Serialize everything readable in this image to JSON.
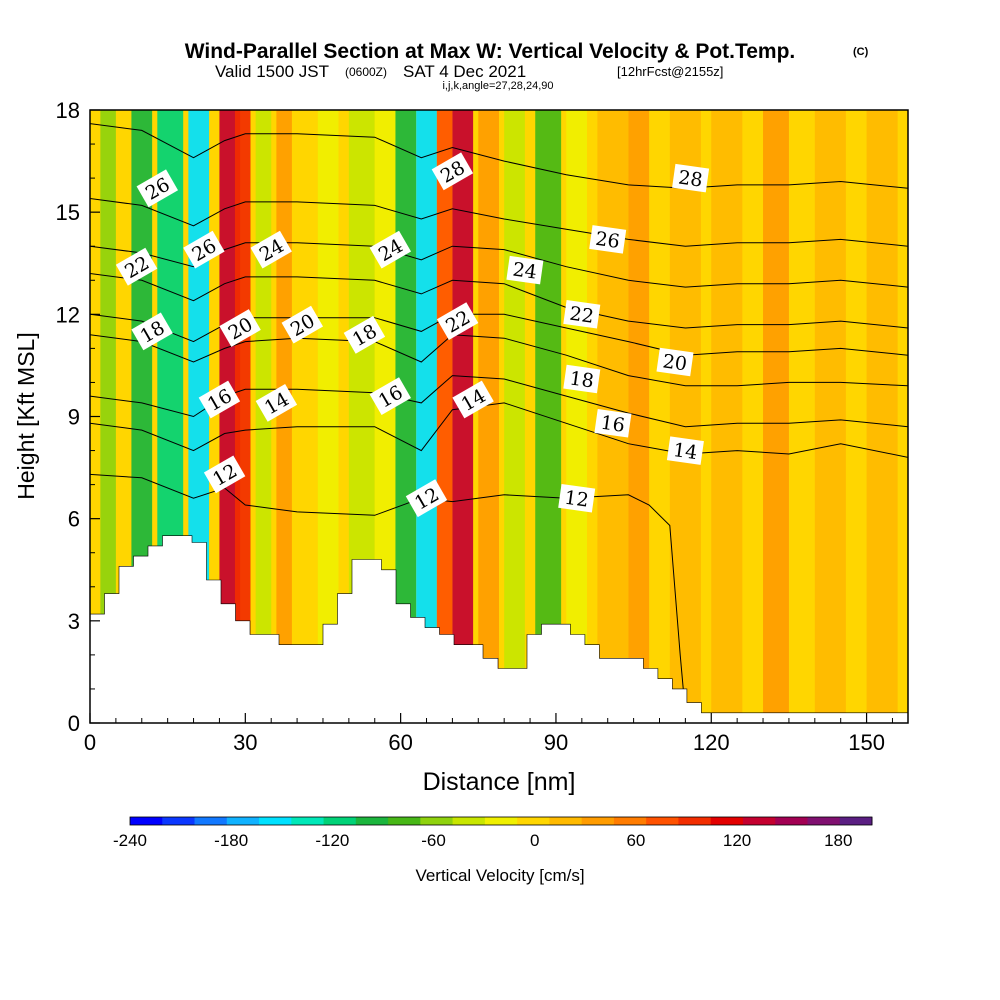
{
  "title": {
    "main": "Wind-Parallel Section at Max W: Vertical Velocity & Pot.Temp.",
    "copyright": "(C)",
    "valid_prefix": "Valid 1500 JST",
    "valid_utc": "(0600Z)",
    "valid_date": "SAT 4 Dec 2021",
    "forecast": "[12hrFcst@2155z]",
    "indices": "i,j,k,angle=27,28,24,90"
  },
  "chart_data": {
    "type": "heatmap",
    "title": "Wind-Parallel Section at Max W: Vertical Velocity & Pot.Temp.",
    "xlabel": "Distance [nm]",
    "ylabel": "Height [Kft MSL]",
    "xlim": [
      0,
      158
    ],
    "ylim": [
      0,
      18
    ],
    "x_ticks": [
      "0",
      "30",
      "60",
      "90",
      "120",
      "150"
    ],
    "y_ticks": [
      "0",
      "3",
      "6",
      "9",
      "12",
      "15",
      "18"
    ],
    "colorbar": {
      "label": "Vertical Velocity [cm/s]",
      "range": [
        -240,
        200
      ],
      "ticks": [
        "-240",
        "-180",
        "-120",
        "-60",
        "0",
        "60",
        "120",
        "180"
      ],
      "colors": [
        "#0000ff",
        "#0a37ff",
        "#1178ff",
        "#10b2ff",
        "#00e1ff",
        "#00e8b8",
        "#00d277",
        "#1bb53d",
        "#47b716",
        "#8fd20d",
        "#c8e600",
        "#f0f000",
        "#ffd600",
        "#ffba00",
        "#ff9c00",
        "#ff7c00",
        "#ff5200",
        "#f22d00",
        "#e30000",
        "#c4002f",
        "#a20053",
        "#801070",
        "#5a1e82"
      ]
    },
    "terrain_kft": [
      [
        0,
        3.2
      ],
      [
        2.8,
        3.8
      ],
      [
        5.6,
        4.6
      ],
      [
        8.4,
        4.9
      ],
      [
        11.2,
        5.2
      ],
      [
        14.0,
        5.5
      ],
      [
        17.0,
        5.5
      ],
      [
        19.7,
        5.3
      ],
      [
        22.5,
        4.2
      ],
      [
        25.3,
        3.5
      ],
      [
        28.1,
        3.0
      ],
      [
        30.9,
        2.6
      ],
      [
        33.7,
        2.6
      ],
      [
        36.5,
        2.3
      ],
      [
        39.4,
        2.3
      ],
      [
        42.2,
        2.3
      ],
      [
        45.0,
        2.9
      ],
      [
        47.8,
        3.8
      ],
      [
        50.6,
        4.8
      ],
      [
        53.4,
        4.8
      ],
      [
        56.3,
        4.5
      ],
      [
        59.1,
        3.5
      ],
      [
        61.9,
        3.1
      ],
      [
        64.7,
        2.8
      ],
      [
        67.5,
        2.6
      ],
      [
        70.3,
        2.3
      ],
      [
        73.1,
        2.3
      ],
      [
        75.9,
        1.9
      ],
      [
        78.8,
        1.6
      ],
      [
        81.6,
        1.6
      ],
      [
        84.4,
        2.6
      ],
      [
        87.2,
        2.9
      ],
      [
        90.0,
        2.9
      ],
      [
        92.8,
        2.6
      ],
      [
        95.6,
        2.3
      ],
      [
        98.4,
        1.9
      ],
      [
        101.3,
        1.9
      ],
      [
        104.1,
        1.9
      ],
      [
        106.9,
        1.6
      ],
      [
        109.7,
        1.3
      ],
      [
        112.5,
        1.0
      ],
      [
        115.3,
        0.6
      ],
      [
        118.1,
        0.3
      ],
      [
        120.9,
        0.3
      ],
      [
        158,
        0.3
      ]
    ],
    "velocity_bands": [
      {
        "x": 2,
        "width": 3,
        "value": -60
      },
      {
        "x": 8,
        "width": 4,
        "value": -90
      },
      {
        "x": 13,
        "width": 5,
        "value": -120
      },
      {
        "x": 19,
        "width": 4,
        "value": -160
      },
      {
        "x": 25,
        "width": 4,
        "value": 130
      },
      {
        "x": 28,
        "width": 3,
        "value": 90
      },
      {
        "x": 32,
        "width": 3,
        "value": -30
      },
      {
        "x": 36,
        "width": 3,
        "value": 30
      },
      {
        "x": 44,
        "width": 4,
        "value": -15
      },
      {
        "x": 50,
        "width": 5,
        "value": -40
      },
      {
        "x": 55,
        "width": 4,
        "value": -20
      },
      {
        "x": 59,
        "width": 4,
        "value": -90
      },
      {
        "x": 63,
        "width": 4,
        "value": -160
      },
      {
        "x": 67,
        "width": 3,
        "value": 80
      },
      {
        "x": 70,
        "width": 4,
        "value": 130
      },
      {
        "x": 75,
        "width": 4,
        "value": 40
      },
      {
        "x": 80,
        "width": 4,
        "value": -30
      },
      {
        "x": 86,
        "width": 5,
        "value": -70
      },
      {
        "x": 92,
        "width": 4,
        "value": -20
      },
      {
        "x": 98,
        "width": 6,
        "value": 20
      },
      {
        "x": 104,
        "width": 4,
        "value": 35
      },
      {
        "x": 112,
        "width": 6,
        "value": 15
      },
      {
        "x": 120,
        "width": 6,
        "value": 25
      },
      {
        "x": 130,
        "width": 5,
        "value": 30
      },
      {
        "x": 140,
        "width": 6,
        "value": 15
      },
      {
        "x": 150,
        "width": 6,
        "value": 25
      }
    ],
    "theta_contours": [
      {
        "value": "12",
        "points": [
          [
            0,
            7.3
          ],
          [
            10,
            7.2
          ],
          [
            20,
            6.6
          ],
          [
            26,
            6.9
          ],
          [
            30,
            6.4
          ],
          [
            40,
            6.2
          ],
          [
            55,
            6.1
          ],
          [
            64,
            6.6
          ],
          [
            70,
            6.5
          ],
          [
            80,
            6.7
          ],
          [
            92,
            6.6
          ],
          [
            104,
            6.7
          ],
          [
            108,
            6.4
          ],
          [
            112,
            5.8
          ],
          [
            114,
            2.0
          ],
          [
            115,
            0.3
          ]
        ],
        "labels": [
          [
            26,
            7.3
          ],
          [
            65,
            6.6
          ],
          [
            94,
            6.6
          ]
        ]
      },
      {
        "value": "14",
        "points": [
          [
            0,
            8.8
          ],
          [
            10,
            8.6
          ],
          [
            20,
            8.0
          ],
          [
            26,
            8.5
          ],
          [
            30,
            8.6
          ],
          [
            40,
            8.7
          ],
          [
            55,
            8.7
          ],
          [
            64,
            8.0
          ],
          [
            70,
            9.2
          ],
          [
            80,
            9.4
          ],
          [
            92,
            8.8
          ],
          [
            104,
            8.2
          ],
          [
            115,
            7.9
          ],
          [
            125,
            8.0
          ],
          [
            135,
            7.9
          ],
          [
            145,
            8.2
          ],
          [
            158,
            7.8
          ]
        ],
        "labels": [
          [
            36,
            9.4
          ],
          [
            74,
            9.5
          ],
          [
            115,
            8.0
          ]
        ]
      },
      {
        "value": "16",
        "points": [
          [
            0,
            9.6
          ],
          [
            10,
            9.4
          ],
          [
            20,
            9.0
          ],
          [
            26,
            9.6
          ],
          [
            30,
            9.8
          ],
          [
            40,
            9.8
          ],
          [
            55,
            9.7
          ],
          [
            64,
            9.4
          ],
          [
            70,
            10.2
          ],
          [
            80,
            10.1
          ],
          [
            92,
            9.6
          ],
          [
            104,
            9.1
          ],
          [
            115,
            8.7
          ],
          [
            125,
            8.8
          ],
          [
            135,
            8.8
          ],
          [
            145,
            8.9
          ],
          [
            158,
            8.7
          ]
        ],
        "labels": [
          [
            25,
            9.5
          ],
          [
            58,
            9.6
          ],
          [
            101,
            8.8
          ]
        ]
      },
      {
        "value": "18",
        "points": [
          [
            0,
            11.4
          ],
          [
            10,
            11.2
          ],
          [
            20,
            10.6
          ],
          [
            26,
            11.0
          ],
          [
            30,
            11.2
          ],
          [
            40,
            11.3
          ],
          [
            55,
            11.2
          ],
          [
            64,
            10.6
          ],
          [
            70,
            11.4
          ],
          [
            80,
            11.3
          ],
          [
            92,
            10.8
          ],
          [
            104,
            10.2
          ],
          [
            115,
            9.9
          ],
          [
            125,
            9.9
          ],
          [
            135,
            10.0
          ],
          [
            145,
            10.0
          ],
          [
            158,
            9.9
          ]
        ],
        "labels": [
          [
            12,
            11.5
          ],
          [
            53,
            11.4
          ],
          [
            95,
            10.1
          ]
        ]
      },
      {
        "value": "20",
        "points": [
          [
            0,
            12.0
          ],
          [
            10,
            11.8
          ],
          [
            20,
            11.2
          ],
          [
            26,
            11.7
          ],
          [
            30,
            11.9
          ],
          [
            40,
            11.9
          ],
          [
            55,
            11.9
          ],
          [
            64,
            11.5
          ],
          [
            70,
            12.0
          ],
          [
            80,
            12.0
          ],
          [
            92,
            11.6
          ],
          [
            104,
            11.2
          ],
          [
            115,
            10.8
          ],
          [
            125,
            10.9
          ],
          [
            135,
            10.9
          ],
          [
            145,
            11.0
          ],
          [
            158,
            10.8
          ]
        ],
        "labels": [
          [
            29,
            11.6
          ],
          [
            41,
            11.7
          ],
          [
            113,
            10.6
          ]
        ]
      },
      {
        "value": "22",
        "points": [
          [
            0,
            13.2
          ],
          [
            10,
            13.0
          ],
          [
            20,
            12.4
          ],
          [
            26,
            12.9
          ],
          [
            30,
            13.1
          ],
          [
            40,
            13.1
          ],
          [
            55,
            13.0
          ],
          [
            64,
            12.6
          ],
          [
            70,
            13.0
          ],
          [
            80,
            12.9
          ],
          [
            92,
            12.2
          ],
          [
            104,
            11.8
          ],
          [
            115,
            11.6
          ],
          [
            125,
            11.7
          ],
          [
            135,
            11.7
          ],
          [
            145,
            11.8
          ],
          [
            158,
            11.6
          ]
        ],
        "labels": [
          [
            9,
            13.4
          ],
          [
            71,
            11.8
          ],
          [
            95,
            12.0
          ]
        ]
      },
      {
        "value": "24",
        "points": [
          [
            0,
            14.0
          ],
          [
            10,
            13.8
          ],
          [
            20,
            13.4
          ],
          [
            26,
            13.9
          ],
          [
            30,
            14.1
          ],
          [
            40,
            14.1
          ],
          [
            55,
            14.0
          ],
          [
            64,
            13.6
          ],
          [
            70,
            14.0
          ],
          [
            80,
            13.9
          ],
          [
            92,
            13.4
          ],
          [
            104,
            13.0
          ],
          [
            115,
            12.8
          ],
          [
            125,
            12.9
          ],
          [
            135,
            12.9
          ],
          [
            145,
            13.0
          ],
          [
            158,
            12.8
          ]
        ],
        "labels": [
          [
            35,
            13.9
          ],
          [
            58,
            13.9
          ],
          [
            84,
            13.3
          ]
        ]
      },
      {
        "value": "26",
        "points": [
          [
            0,
            15.4
          ],
          [
            10,
            15.2
          ],
          [
            20,
            14.6
          ],
          [
            26,
            15.1
          ],
          [
            30,
            15.3
          ],
          [
            40,
            15.3
          ],
          [
            55,
            15.2
          ],
          [
            64,
            14.8
          ],
          [
            70,
            15.1
          ],
          [
            80,
            14.8
          ],
          [
            92,
            14.5
          ],
          [
            104,
            14.2
          ],
          [
            115,
            14.0
          ],
          [
            125,
            14.1
          ],
          [
            135,
            14.1
          ],
          [
            145,
            14.2
          ],
          [
            158,
            14.0
          ]
        ],
        "labels": [
          [
            13,
            15.7
          ],
          [
            22,
            13.9
          ],
          [
            100,
            14.2
          ]
        ]
      },
      {
        "value": "28",
        "points": [
          [
            0,
            17.6
          ],
          [
            10,
            17.4
          ],
          [
            20,
            16.6
          ],
          [
            26,
            17.1
          ],
          [
            30,
            17.3
          ],
          [
            40,
            17.3
          ],
          [
            55,
            17.2
          ],
          [
            64,
            16.6
          ],
          [
            70,
            16.9
          ],
          [
            80,
            16.5
          ],
          [
            92,
            16.1
          ],
          [
            104,
            15.8
          ],
          [
            115,
            15.7
          ],
          [
            125,
            15.8
          ],
          [
            135,
            15.8
          ],
          [
            145,
            15.9
          ],
          [
            158,
            15.7
          ]
        ],
        "labels": [
          [
            70,
            16.2
          ],
          [
            116,
            16.0
          ]
        ]
      }
    ]
  }
}
